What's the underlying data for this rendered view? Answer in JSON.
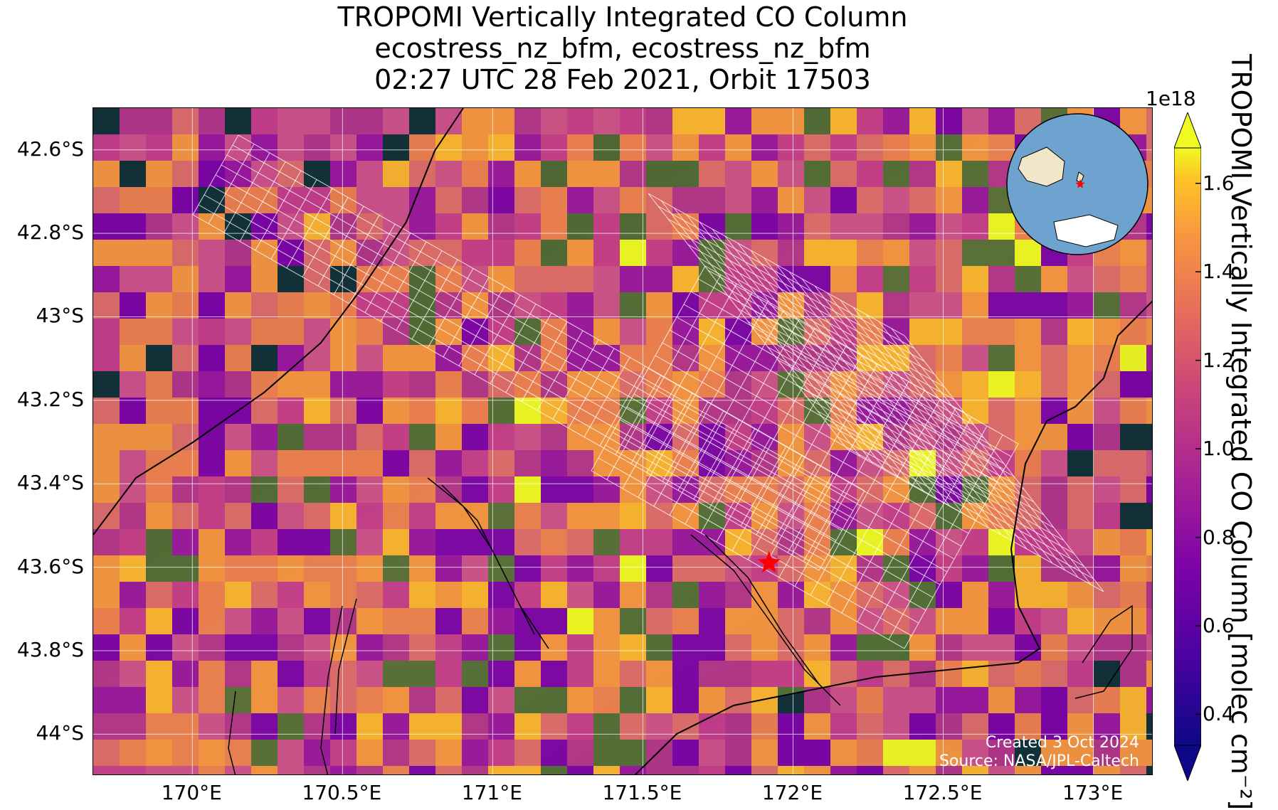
{
  "title": {
    "line1": "TROPOMI Vertically Integrated CO Column",
    "line2": "ecostress_nz_bfm, ecostress_nz_bfm",
    "line3": "02:27 UTC 28 Feb 2021, Orbit 17503"
  },
  "map": {
    "lon_range": [
      169.67,
      173.2
    ],
    "lat_range": [
      -44.1,
      -42.5
    ],
    "y_ticks": [
      "42.6°S",
      "42.8°S",
      "43°S",
      "43.2°S",
      "43.4°S",
      "43.6°S",
      "43.8°S",
      "44°S"
    ],
    "x_ticks": [
      "170°E",
      "170.5°E",
      "171°E",
      "171.5°E",
      "172°E",
      "172.5°E",
      "173°E"
    ],
    "target_marker": {
      "name": "red-star",
      "lon": 171.92,
      "lat": -43.59,
      "color": "#ff0000"
    },
    "credit_line1": "Created 3 Oct 2024",
    "credit_line2": "Source: NASA/JPL-Caltech"
  },
  "colorbar": {
    "colormap": "plasma",
    "min": 0.4,
    "max": 1.6,
    "exponent_label": "1e18",
    "ticks": [
      "0.4",
      "0.6",
      "0.8",
      "1.0",
      "1.2",
      "1.4",
      "1.6"
    ],
    "tick_values": [
      0.4,
      0.6,
      0.8,
      1.0,
      1.2,
      1.4,
      1.6
    ],
    "label": "TROPOMI Vertically Integrated CO Column [molec cm⁻²]",
    "extend": "both"
  },
  "inset_globe": {
    "ocean_color": "#6fa3cf",
    "land_color": "#f0e6c8",
    "marker_color": "#ff0000"
  },
  "colors": {
    "grid": "#ffffff",
    "coastline": "#000000",
    "swath_outline": "#ffffff"
  }
}
